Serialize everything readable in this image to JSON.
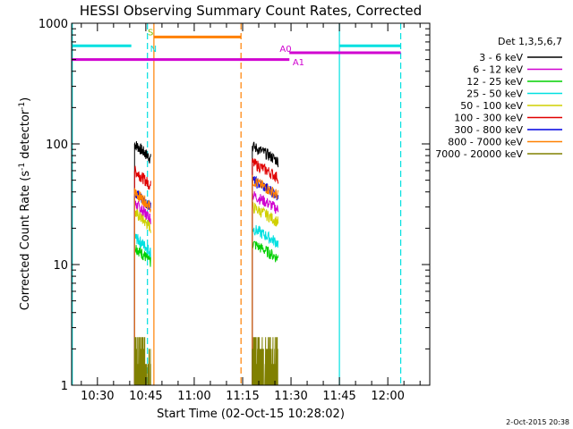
{
  "chart_data": {
    "type": "line",
    "title": "HESSI Observing Summary Count Rates, Corrected",
    "xlabel": "Start Time (02-Oct-15 10:28:02)",
    "ylabel_main": "Corrected Count Rate (s",
    "ylabel_sup1": "-1",
    "ylabel_mid": " detector",
    "ylabel_sup2": "-1",
    "ylabel_end": ")",
    "y_scale": "log",
    "ylim": [
      1,
      1000
    ],
    "y_ticks": [
      {
        "value": 1,
        "label": "1"
      },
      {
        "value": 10,
        "label": "10"
      },
      {
        "value": 100,
        "label": "100"
      },
      {
        "value": 1000,
        "label": "1000"
      }
    ],
    "xlim_minutes": [
      622,
      733
    ],
    "x_ticks": [
      {
        "minute": 630,
        "label": "10:30"
      },
      {
        "minute": 645,
        "label": "10:45"
      },
      {
        "minute": 660,
        "label": "11:00"
      },
      {
        "minute": 675,
        "label": "11:15"
      },
      {
        "minute": 690,
        "label": "11:30"
      },
      {
        "minute": 705,
        "label": "11:45"
      },
      {
        "minute": 720,
        "label": "12:00"
      }
    ],
    "legend": {
      "position": "right",
      "title": "Det 1,3,5,6,7",
      "entries": [
        {
          "label": "3 - 6 keV",
          "color": "#000000"
        },
        {
          "label": "6 - 12 keV",
          "color": "#d000d0"
        },
        {
          "label": "12 - 25 keV",
          "color": "#00d000"
        },
        {
          "label": "25 - 50 keV",
          "color": "#00e0e0"
        },
        {
          "label": "50 - 100 keV",
          "color": "#d0d000"
        },
        {
          "label": "100 - 300 keV",
          "color": "#e00000"
        },
        {
          "label": "300 - 800 keV",
          "color": "#0000e0"
        },
        {
          "label": "800 - 7000 keV",
          "color": "#ff8000"
        },
        {
          "label": "7000 - 20000 keV",
          "color": "#808000"
        }
      ]
    },
    "segments": [
      {
        "start": 641.5,
        "end": 646.5,
        "levels": {
          "3 - 6 keV": 100,
          "6 - 12 keV": 32,
          "12 - 25 keV": 14,
          "25 - 50 keV": 17,
          "50 - 100 keV": 27,
          "100 - 300 keV": 60,
          "300 - 800 keV": 40,
          "800 - 7000 keV": 40,
          "7000 - 20000 keV": 1.8
        }
      },
      {
        "start": 678.0,
        "end": 686.0,
        "levels": {
          "3 - 6 keV": 96,
          "6 - 12 keV": 38,
          "12 - 25 keV": 15,
          "25 - 50 keV": 20,
          "50 - 100 keV": 30,
          "100 - 300 keV": 70,
          "300 - 800 keV": 50,
          "800 - 7000 keV": 50,
          "7000 - 20000 keV": 2.0
        }
      }
    ],
    "attenuator_bars": [
      {
        "color": "#00e0e0",
        "from": 622,
        "to": 640.5,
        "y": 650
      },
      {
        "color": "#00e0e0",
        "from": 705,
        "to": 724,
        "y": 650
      },
      {
        "color": "#ff8000",
        "from": 647.5,
        "to": 674.5,
        "y": 770
      },
      {
        "color": "#d000d0",
        "from": 622,
        "to": 689.5,
        "y": 500
      },
      {
        "color": "#d000d0",
        "from": 689.5,
        "to": 724,
        "y": 570
      }
    ],
    "annotations": [
      {
        "text": "S",
        "color": "#80c000",
        "minute": 645.6,
        "y": 850
      },
      {
        "text": "N",
        "color": "#00e0e0",
        "minute": 646.3,
        "y": 620
      },
      {
        "text": "A0",
        "color": "#d000d0",
        "minute": 686.5,
        "y": 620
      },
      {
        "text": "A1",
        "color": "#d000d0",
        "minute": 690.5,
        "y": 480
      }
    ],
    "vertical_lines": [
      {
        "minute": 622.2,
        "color": "#00e0e0",
        "style": "solid"
      },
      {
        "minute": 645.5,
        "color": "#00e0e0",
        "style": "dashed"
      },
      {
        "minute": 647.5,
        "color": "#ff8000",
        "style": "solid"
      },
      {
        "minute": 674.5,
        "color": "#ff8000",
        "style": "dashed"
      },
      {
        "minute": 705.0,
        "color": "#00e0e0",
        "style": "solid"
      },
      {
        "minute": 724.0,
        "color": "#00e0e0",
        "style": "dashed"
      }
    ],
    "footer": "2-Oct-2015 20:38"
  }
}
